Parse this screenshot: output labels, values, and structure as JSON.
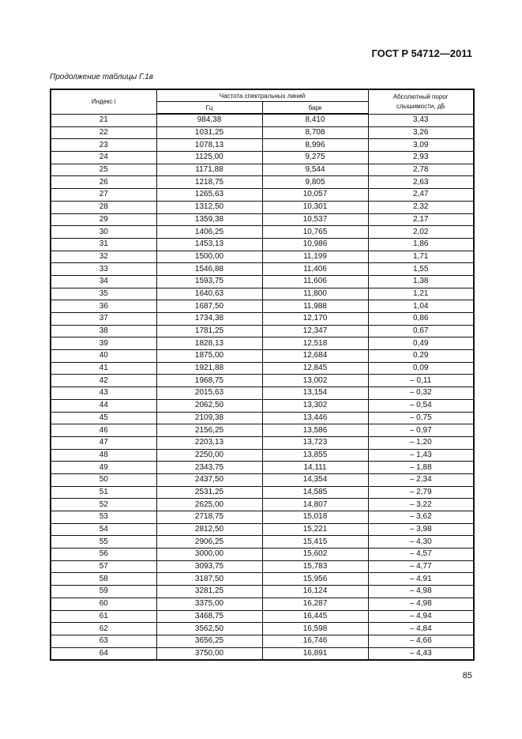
{
  "header": {
    "doc_code": "ГОСТ Р 54712—2011"
  },
  "caption": "Продолжение таблицы Г.1в",
  "table": {
    "col_index": "Индекс i",
    "col_freq_group": "Частота спектральных линий",
    "col_hz": "Гц",
    "col_bark": "барк",
    "col_threshold": "Абсолютный порог слышимости, дБ",
    "rows": [
      [
        "21",
        "984,38",
        "8,410",
        "3,43"
      ],
      [
        "22",
        "1031,25",
        "8,708",
        "3,26"
      ],
      [
        "23",
        "1078,13",
        "8,996",
        "3,09"
      ],
      [
        "24",
        "1125,00",
        "9,275",
        "2,93"
      ],
      [
        "25",
        "1171,88",
        "9,544",
        "2,78"
      ],
      [
        "26",
        "1218,75",
        "9,805",
        "2,63"
      ],
      [
        "27",
        "1265,63",
        "10,057",
        "2,47"
      ],
      [
        "28",
        "1312,50",
        "10,301",
        "2,32"
      ],
      [
        "29",
        "1359,38",
        "10,537",
        "2,17"
      ],
      [
        "30",
        "1406,25",
        "10,765",
        "2,02"
      ],
      [
        "31",
        "1453,13",
        "10,986",
        "1,86"
      ],
      [
        "32",
        "1500,00",
        "11,199",
        "1,71"
      ],
      [
        "33",
        "1546,88",
        "11,406",
        "1,55"
      ],
      [
        "34",
        "1593,75",
        "11,606",
        "1,38"
      ],
      [
        "35",
        "1640,63",
        "11,800",
        "1,21"
      ],
      [
        "36",
        "1687,50",
        "11,988",
        "1,04"
      ],
      [
        "37",
        "1734,38",
        "12,170",
        "0,86"
      ],
      [
        "38",
        "1781,25",
        "12,347",
        "0,67"
      ],
      [
        "39",
        "1828,13",
        "12,518",
        "0,49"
      ],
      [
        "40",
        "1875,00",
        "12,684",
        "0,29"
      ],
      [
        "41",
        "1921,88",
        "12,845",
        "0,09"
      ],
      [
        "42",
        "1968,75",
        "13,002",
        "– 0,11"
      ],
      [
        "43",
        "2015,63",
        "13,154",
        "– 0,32"
      ],
      [
        "44",
        "2062,50",
        "13,302",
        "– 0,54"
      ],
      [
        "45",
        "2109,38",
        "13,446",
        "– 0,75"
      ],
      [
        "46",
        "2156,25",
        "13,586",
        "– 0,97"
      ],
      [
        "47",
        "2203,13",
        "13,723",
        "– 1,20"
      ],
      [
        "48",
        "2250,00",
        "13,855",
        "– 1,43"
      ],
      [
        "49",
        "2343,75",
        "14,111",
        "– 1,88"
      ],
      [
        "50",
        "2437,50",
        "14,354",
        "– 2,34"
      ],
      [
        "51",
        "2531,25",
        "14,585",
        "– 2,79"
      ],
      [
        "52",
        "2625,00",
        "14,807",
        "– 3,22"
      ],
      [
        "53",
        "2718,75",
        "15,018",
        "– 3,62"
      ],
      [
        "54",
        "2812,50",
        "15,221",
        "– 3,98"
      ],
      [
        "55",
        "2906,25",
        "15,415",
        "– 4,30"
      ],
      [
        "56",
        "3000,00",
        "15,602",
        "– 4,57"
      ],
      [
        "57",
        "3093,75",
        "15,783",
        "– 4,77"
      ],
      [
        "58",
        "3187,50",
        "15,956",
        "– 4,91"
      ],
      [
        "59",
        "3281,25",
        "16,124",
        "– 4,98"
      ],
      [
        "60",
        "3375,00",
        "16,287",
        "– 4,98"
      ],
      [
        "61",
        "3468,75",
        "16,445",
        "– 4,94"
      ],
      [
        "62",
        "3562,50",
        "16,598",
        "– 4,84"
      ],
      [
        "63",
        "3656,25",
        "16,746",
        "– 4,66"
      ],
      [
        "64",
        "3750,00",
        "16,891",
        "– 4,43"
      ]
    ]
  },
  "footer": {
    "page_number": "85"
  }
}
